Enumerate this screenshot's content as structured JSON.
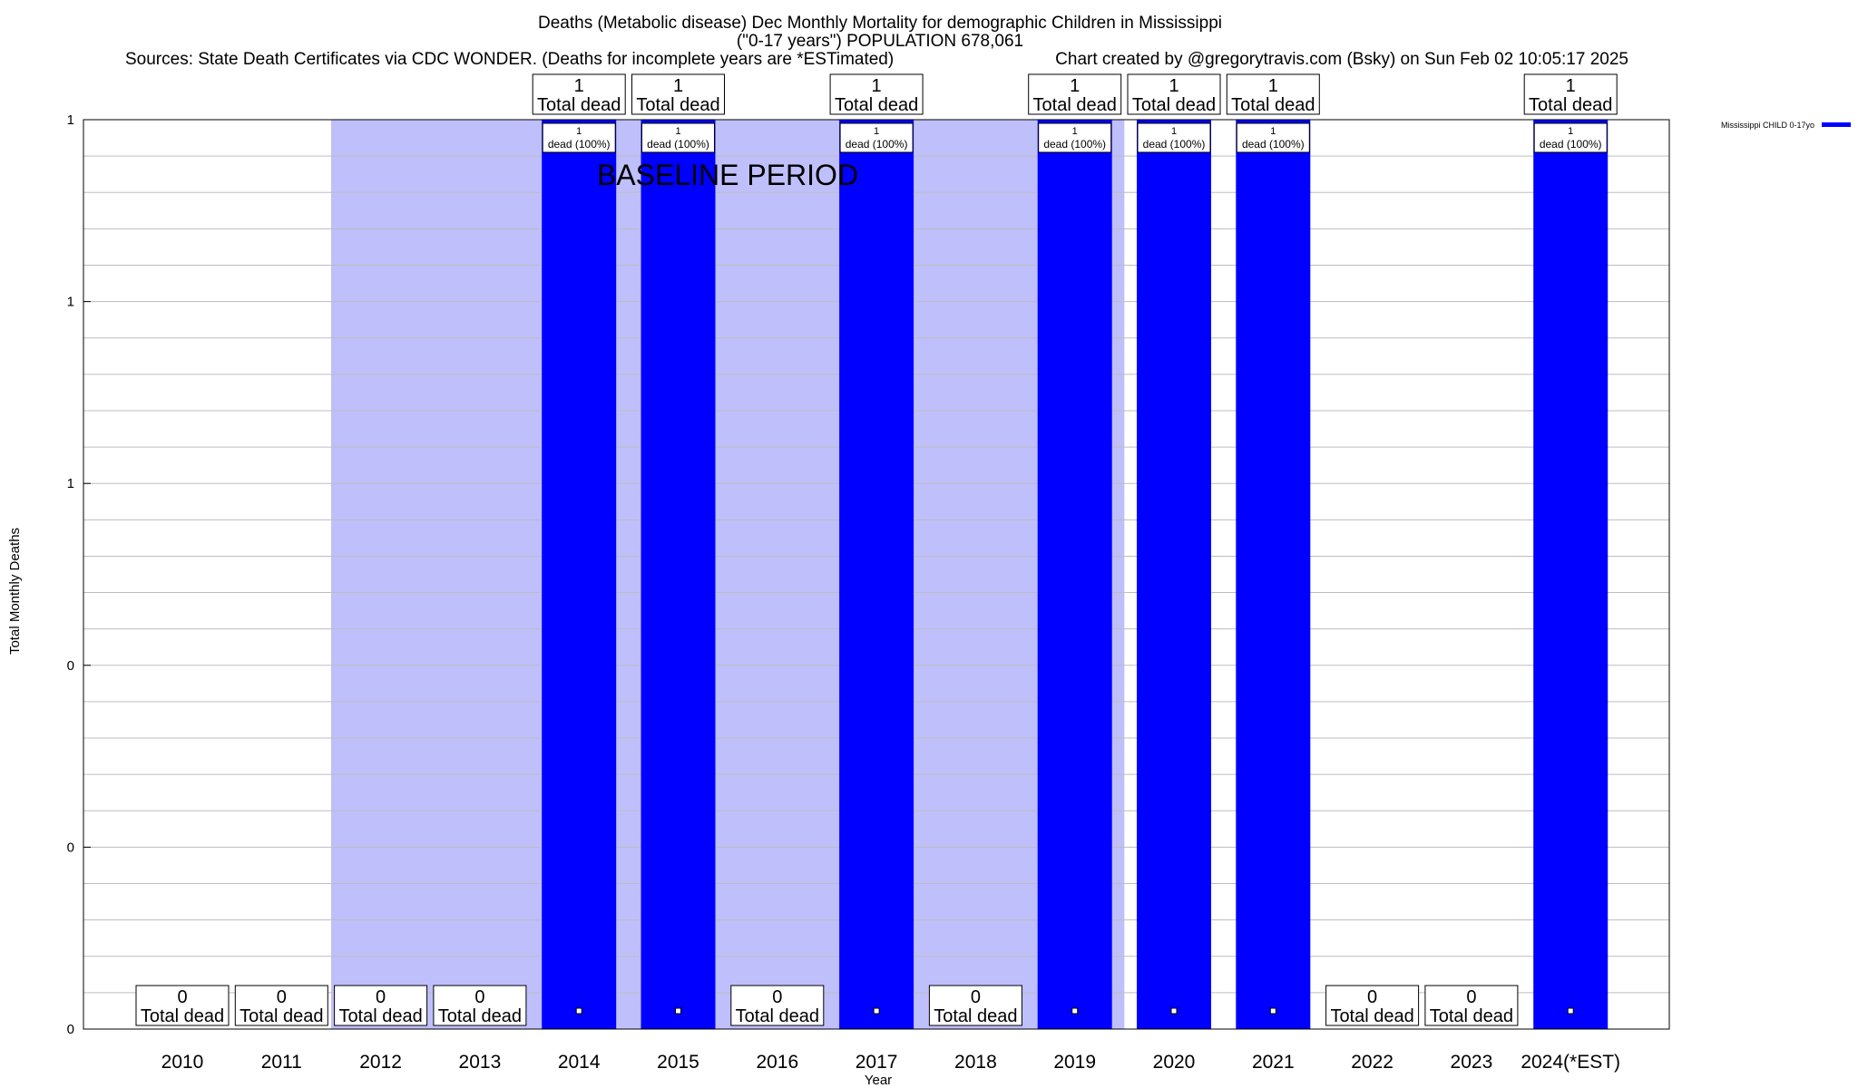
{
  "chart_data": {
    "type": "bar",
    "title_line1": "Deaths (Metabolic disease) Dec Monthly Mortality for demographic Children in Mississippi",
    "title_line2": "(\"0-17 years\") POPULATION 678,061",
    "sources": "Sources: State Death Certificates via CDC WONDER. (Deaths for incomplete years are *ESTimated)",
    "credit": "Chart created by @gregorytravis.com (Bsky) on Sun Feb 02 10:05:17 2025",
    "xlabel": "Year",
    "ylabel": "Total Monthly Deaths",
    "baseline_label": "BASELINE PERIOD",
    "baseline_range": [
      "2012",
      "2019"
    ],
    "categories": [
      "2010",
      "2011",
      "2012",
      "2013",
      "2014",
      "2015",
      "2016",
      "2017",
      "2018",
      "2019",
      "2020",
      "2021",
      "2022",
      "2023",
      "2024(*EST)"
    ],
    "series": [
      {
        "name": "Mississippi CHILD 0-17yo",
        "color": "#0000ff",
        "values": [
          0,
          0,
          0,
          0,
          1,
          1,
          0,
          1,
          0,
          1,
          1,
          1,
          0,
          0,
          1
        ]
      }
    ],
    "total_label_suffix": "Total dead",
    "bar_label_suffix": "dead (100%)",
    "ylim": [
      0,
      1
    ],
    "yticks": [
      {
        "value": 0,
        "label": "0"
      },
      {
        "value": 0.2,
        "label": "0"
      },
      {
        "value": 0.4,
        "label": "0"
      },
      {
        "value": 0.6,
        "label": "1"
      },
      {
        "value": 0.8,
        "label": "1"
      },
      {
        "value": 1.0,
        "label": "1"
      }
    ],
    "grid": true,
    "legend": "top-right",
    "baseline_color": "#bfbffb"
  }
}
